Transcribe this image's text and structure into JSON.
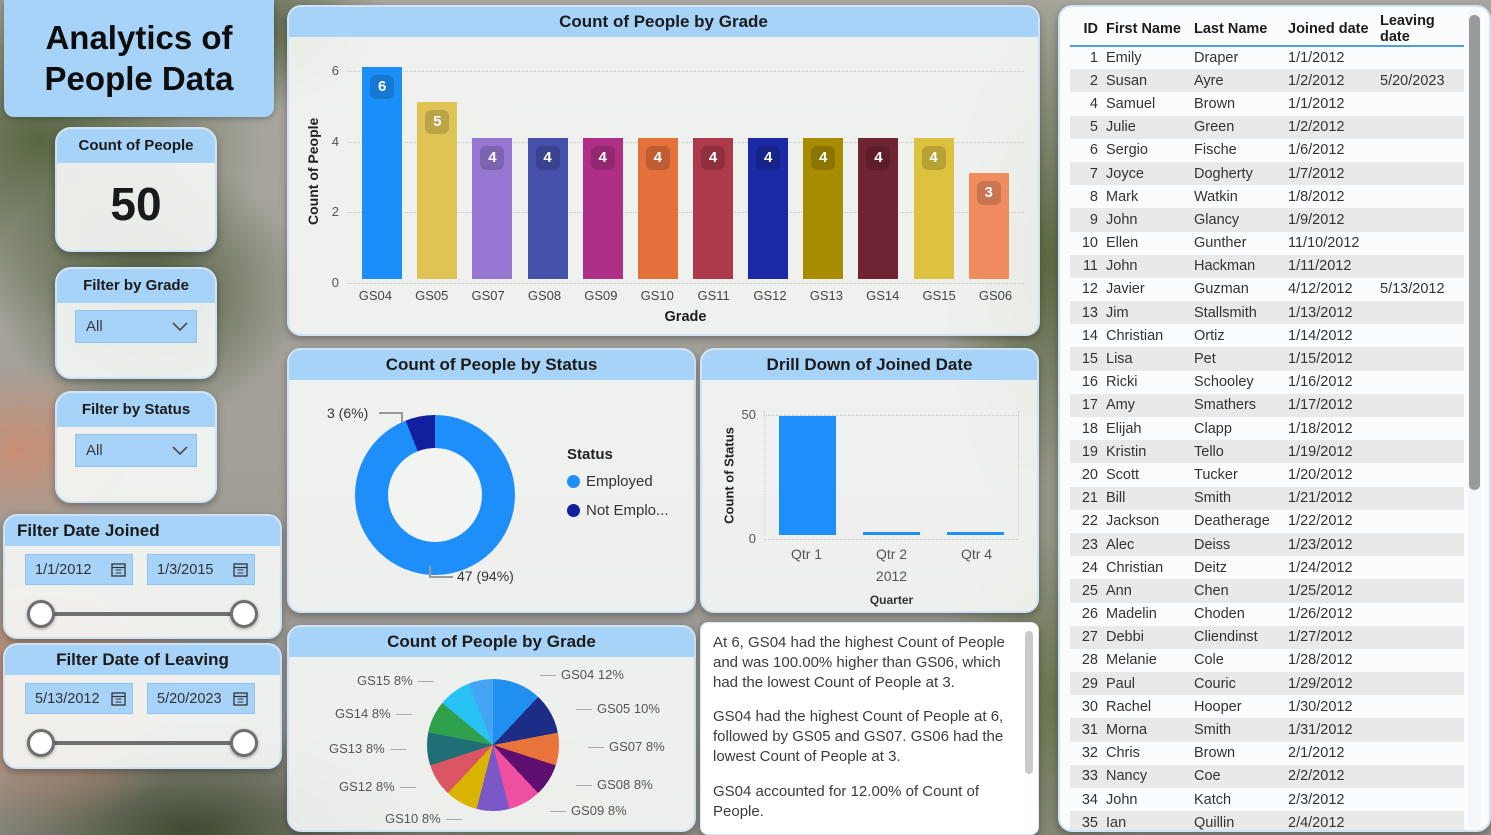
{
  "title": "Analytics of People Data",
  "accent_color": "#A7D3F8",
  "kpi": {
    "label": "Count of People",
    "value": "50"
  },
  "filters": {
    "grade": {
      "label": "Filter by Grade",
      "value": "All"
    },
    "status": {
      "label": "Filter by Status",
      "value": "All"
    },
    "date_joined": {
      "label": "Filter Date Joined",
      "start": "1/1/2012",
      "end": "1/3/2015"
    },
    "date_leaving": {
      "label": "Filter Date of Leaving",
      "start": "5/13/2012",
      "end": "5/20/2023"
    }
  },
  "icons": {
    "dropdown": "chevron-down-icon",
    "date_picker": "calendar-icon"
  },
  "chart_data": [
    {
      "type": "bar",
      "title": "Count of People by Grade",
      "xlabel": "Grade",
      "ylabel": "Count of People",
      "yticks": [
        0,
        2,
        4,
        6
      ],
      "ylim": [
        0,
        6
      ],
      "grid": "dotted-horizontal",
      "categories": [
        "GS04",
        "GS05",
        "GS07",
        "GS08",
        "GS09",
        "GS10",
        "GS11",
        "GS12",
        "GS13",
        "GS14",
        "GS15",
        "GS06"
      ],
      "values": [
        6,
        5,
        4,
        4,
        4,
        4,
        4,
        4,
        4,
        4,
        4,
        3
      ],
      "bar_labels": [
        "6",
        "5",
        "4",
        "4",
        "4",
        "4",
        "4",
        "4",
        "4",
        "4",
        "4",
        "3"
      ],
      "colors": [
        "#1A8FFA",
        "#DFC455",
        "#9678D2",
        "#4450AA",
        "#B02F86",
        "#E4713C",
        "#AC3A4A",
        "#1B2AA4",
        "#A68C00",
        "#6F2433",
        "#DDC23F",
        "#F08C60"
      ]
    },
    {
      "type": "pie",
      "subtype": "donut",
      "title": "Count of People by Status",
      "legend_title": "Status",
      "legend_position": "right",
      "series": [
        {
          "name": "Employed",
          "legend_label": "Employed",
          "value": 47,
          "pct": 94,
          "callout": "47 (94%)",
          "color": "#1E8FFA"
        },
        {
          "name": "Not Employed",
          "legend_label": "Not Emplo...",
          "value": 3,
          "pct": 6,
          "callout": "3 (6%)",
          "color": "#121F9E"
        }
      ]
    },
    {
      "type": "bar",
      "title": "Drill Down of Joined Date",
      "xlabel": "Quarter",
      "ylabel": "Count of Status",
      "yticks": [
        0,
        50
      ],
      "ylim": [
        0,
        50
      ],
      "year_label": "2012",
      "categories": [
        "Qtr 1",
        "Qtr 2",
        "Qtr 4"
      ],
      "values": [
        48,
        1,
        1
      ],
      "bar_color": "#1E8FFA"
    },
    {
      "type": "pie",
      "title": "Count of People by Grade",
      "slices": [
        {
          "name": "GS04",
          "pct": 12,
          "color": "#2090F0"
        },
        {
          "name": "GS05",
          "pct": 10,
          "color": "#1D2C86"
        },
        {
          "name": "GS07",
          "pct": 8,
          "color": "#E8743C"
        },
        {
          "name": "GS08",
          "pct": 8,
          "color": "#5E1070"
        },
        {
          "name": "GS09",
          "pct": 8,
          "color": "#EE4FA0"
        },
        {
          "name": "GS10",
          "pct": 8,
          "color": "#7A58C8"
        },
        {
          "name": "GS11",
          "pct": 8,
          "color": "#D8B400"
        },
        {
          "name": "GS12",
          "pct": 8,
          "color": "#DB5662"
        },
        {
          "name": "GS13",
          "pct": 8,
          "color": "#1E7076"
        },
        {
          "name": "GS14",
          "pct": 8,
          "color": "#2FA04C"
        },
        {
          "name": "GS15",
          "pct": 8,
          "color": "#28C2F4"
        },
        {
          "name": "GS06",
          "pct": 6,
          "color": "#44A5F5"
        }
      ],
      "visible_labels": [
        "GS04 12%",
        "GS05 10%",
        "GS07 8%",
        "GS08 8%",
        "GS09 8%",
        "GS10 8%",
        "GS12 8%",
        "GS13 8%",
        "GS14 8%",
        "GS15 8%"
      ]
    }
  ],
  "narrative": {
    "paragraphs": [
      "At 6, GS04 had the highest Count of People and was 100.00% higher than GS06, which had the lowest Count of People at 3.",
      "GS04 had the highest Count of People at 6, followed by GS05 and GS07. GS06 had the lowest Count of People at 3.",
      "GS04 accounted for 12.00% of Count of People."
    ]
  },
  "table": {
    "columns": [
      "ID",
      "First Name",
      "Last Name",
      "Joined date",
      "Leaving date"
    ],
    "rows": [
      [
        "1",
        "Emily",
        "Draper",
        "1/1/2012",
        ""
      ],
      [
        "2",
        "Susan",
        "Ayre",
        "1/2/2012",
        "5/20/2023"
      ],
      [
        "4",
        "Samuel",
        "Brown",
        "1/1/2012",
        ""
      ],
      [
        "5",
        "Julie",
        "Green",
        "1/2/2012",
        ""
      ],
      [
        "6",
        "Sergio",
        "Fische",
        "1/6/2012",
        ""
      ],
      [
        "7",
        "Joyce",
        "Dogherty",
        "1/7/2012",
        ""
      ],
      [
        "8",
        "Mark",
        "Watkin",
        "1/8/2012",
        ""
      ],
      [
        "9",
        "John",
        "Glancy",
        "1/9/2012",
        ""
      ],
      [
        "10",
        "Ellen",
        "Gunther",
        "11/10/2012",
        ""
      ],
      [
        "11",
        "John",
        "Hackman",
        "1/11/2012",
        ""
      ],
      [
        "12",
        "Javier",
        "Guzman",
        "4/12/2012",
        "5/13/2012"
      ],
      [
        "13",
        "Jim",
        "Stallsmith",
        "1/13/2012",
        ""
      ],
      [
        "14",
        "Christian",
        "Ortiz",
        "1/14/2012",
        ""
      ],
      [
        "15",
        "Lisa",
        "Pet",
        "1/15/2012",
        ""
      ],
      [
        "16",
        "Ricki",
        "Schooley",
        "1/16/2012",
        ""
      ],
      [
        "17",
        "Amy",
        "Smathers",
        "1/17/2012",
        ""
      ],
      [
        "18",
        "Elijah",
        "Clapp",
        "1/18/2012",
        ""
      ],
      [
        "19",
        "Kristin",
        "Tello",
        "1/19/2012",
        ""
      ],
      [
        "20",
        "Scott",
        "Tucker",
        "1/20/2012",
        ""
      ],
      [
        "21",
        "Bill",
        "Smith",
        "1/21/2012",
        ""
      ],
      [
        "22",
        "Jackson",
        "Deatherage",
        "1/22/2012",
        ""
      ],
      [
        "23",
        "Alec",
        "Deiss",
        "1/23/2012",
        ""
      ],
      [
        "24",
        "Christian",
        "Deitz",
        "1/24/2012",
        ""
      ],
      [
        "25",
        "Ann",
        "Chen",
        "1/25/2012",
        ""
      ],
      [
        "26",
        "Madelin",
        "Choden",
        "1/26/2012",
        ""
      ],
      [
        "27",
        "Debbi",
        "Cliendinst",
        "1/27/2012",
        ""
      ],
      [
        "28",
        "Melanie",
        "Cole",
        "1/28/2012",
        ""
      ],
      [
        "29",
        "Paul",
        "Couric",
        "1/29/2012",
        ""
      ],
      [
        "30",
        "Rachel",
        "Hooper",
        "1/30/2012",
        ""
      ],
      [
        "31",
        "Morna",
        "Smith",
        "1/31/2012",
        ""
      ],
      [
        "32",
        "Chris",
        "Brown",
        "2/1/2012",
        ""
      ],
      [
        "33",
        "Nancy",
        "Coe",
        "2/2/2012",
        ""
      ],
      [
        "34",
        "John",
        "Katch",
        "2/3/2012",
        ""
      ],
      [
        "35",
        "Ian",
        "Quillin",
        "2/4/2012",
        ""
      ]
    ]
  }
}
